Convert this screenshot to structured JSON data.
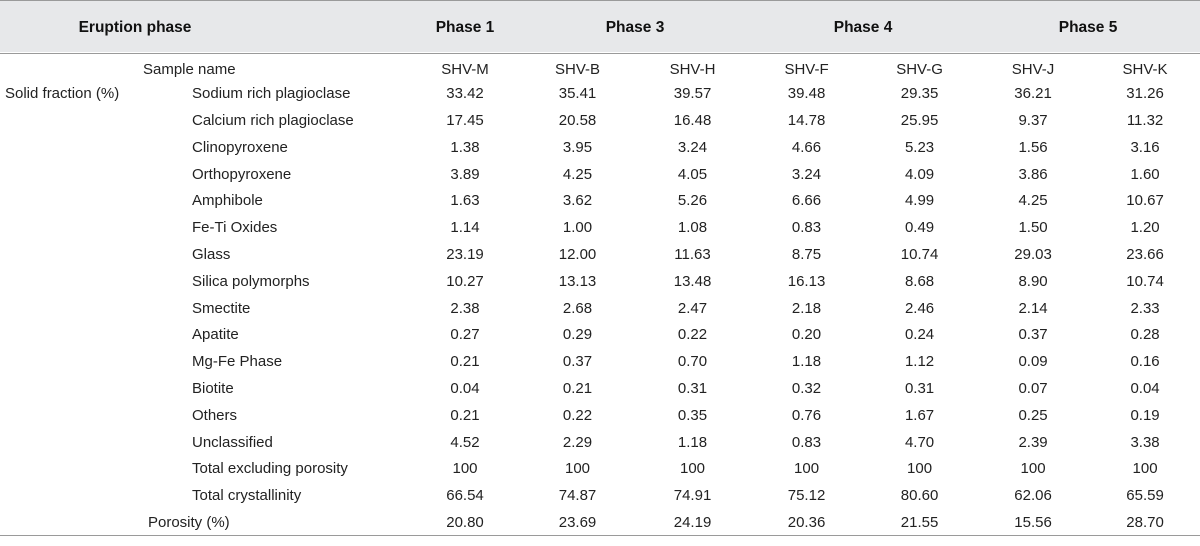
{
  "header": {
    "eruption_phase": "Eruption phase",
    "phase1": "Phase 1",
    "phase3": "Phase 3",
    "phase4": "Phase 4",
    "phase5": "Phase 5"
  },
  "sample_row": {
    "label": "Sample name",
    "values": [
      "SHV-M",
      "SHV-B",
      "SHV-H",
      "SHV-F",
      "SHV-G",
      "SHV-J",
      "SHV-K"
    ]
  },
  "solid_fraction_label": "Solid fraction (%)",
  "rows": [
    {
      "name": "Sodium rich plagioclase",
      "values": [
        "33.42",
        "35.41",
        "39.57",
        "39.48",
        "29.35",
        "36.21",
        "31.26"
      ]
    },
    {
      "name": "Calcium rich plagioclase",
      "values": [
        "17.45",
        "20.58",
        "16.48",
        "14.78",
        "25.95",
        "9.37",
        "11.32"
      ]
    },
    {
      "name": "Clinopyroxene",
      "values": [
        "1.38",
        "3.95",
        "3.24",
        "4.66",
        "5.23",
        "1.56",
        "3.16"
      ]
    },
    {
      "name": "Orthopyroxene",
      "values": [
        "3.89",
        "4.25",
        "4.05",
        "3.24",
        "4.09",
        "3.86",
        "1.60"
      ]
    },
    {
      "name": "Amphibole",
      "values": [
        "1.63",
        "3.62",
        "5.26",
        "6.66",
        "4.99",
        "4.25",
        "10.67"
      ]
    },
    {
      "name": "Fe-Ti Oxides",
      "values": [
        "1.14",
        "1.00",
        "1.08",
        "0.83",
        "0.49",
        "1.50",
        "1.20"
      ]
    },
    {
      "name": "Glass",
      "values": [
        "23.19",
        "12.00",
        "11.63",
        "8.75",
        "10.74",
        "29.03",
        "23.66"
      ]
    },
    {
      "name": "Silica polymorphs",
      "values": [
        "10.27",
        "13.13",
        "13.48",
        "16.13",
        "8.68",
        "8.90",
        "10.74"
      ]
    },
    {
      "name": "Smectite",
      "values": [
        "2.38",
        "2.68",
        "2.47",
        "2.18",
        "2.46",
        "2.14",
        "2.33"
      ]
    },
    {
      "name": "Apatite",
      "values": [
        "0.27",
        "0.29",
        "0.22",
        "0.20",
        "0.24",
        "0.37",
        "0.28"
      ]
    },
    {
      "name": "Mg-Fe Phase",
      "values": [
        "0.21",
        "0.37",
        "0.70",
        "1.18",
        "1.12",
        "0.09",
        "0.16"
      ]
    },
    {
      "name": "Biotite",
      "values": [
        "0.04",
        "0.21",
        "0.31",
        "0.32",
        "0.31",
        "0.07",
        "0.04"
      ]
    },
    {
      "name": "Others",
      "values": [
        "0.21",
        "0.22",
        "0.35",
        "0.76",
        "1.67",
        "0.25",
        "0.19"
      ]
    },
    {
      "name": "Unclassified",
      "values": [
        "4.52",
        "2.29",
        "1.18",
        "0.83",
        "4.70",
        "2.39",
        "3.38"
      ]
    },
    {
      "name": "Total excluding porosity",
      "values": [
        "100",
        "100",
        "100",
        "100",
        "100",
        "100",
        "100"
      ]
    },
    {
      "name": "Total crystallinity",
      "values": [
        "66.54",
        "74.87",
        "74.91",
        "75.12",
        "80.60",
        "62.06",
        "65.59"
      ]
    }
  ],
  "porosity_row": {
    "label": "Porosity (%)",
    "values": [
      "20.80",
      "23.69",
      "24.19",
      "20.36",
      "21.55",
      "15.56",
      "28.70"
    ]
  }
}
